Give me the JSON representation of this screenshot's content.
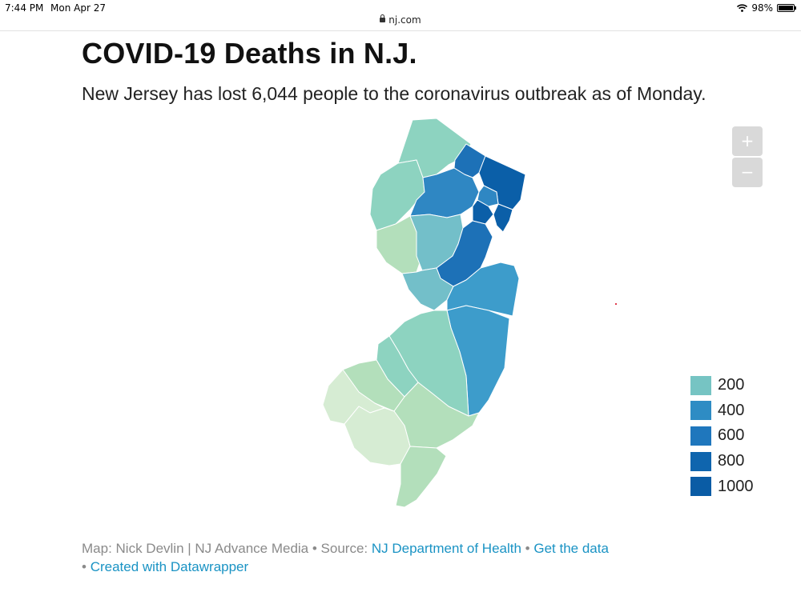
{
  "status_bar": {
    "time": "7:44 PM",
    "date": "Mon Apr 27",
    "battery": "98%"
  },
  "browser": {
    "url": "nj.com"
  },
  "title": "COVID-19 Deaths in N.J.",
  "subtitle": "New Jersey has lost 6,044 people to the coronavirus outbreak as of Monday.",
  "zoom": {
    "in_label": "+",
    "out_label": "−"
  },
  "legend": [
    {
      "label": "200",
      "color": "#76c4c3"
    },
    {
      "label": "400",
      "color": "#2e8cc4"
    },
    {
      "label": "600",
      "color": "#1f77bd"
    },
    {
      "label": "800",
      "color": "#0f65ae"
    },
    {
      "label": "1000",
      "color": "#0a5ca5"
    }
  ],
  "footer": {
    "prefix": "Map: Nick Devlin | NJ Advance Media • Source: ",
    "source_link": "NJ Department of Health",
    "sep1": " • ",
    "data_link": "Get the data",
    "sep2": "• ",
    "credit_link": "Created with Datawrapper"
  },
  "map_colors": {
    "lightest": "#d6ecd3",
    "light": "#b3dfbb",
    "teal_light": "#8dd3c0",
    "teal": "#73bfc9",
    "blue_mid": "#3d9ccb",
    "blue": "#2f87c3",
    "blue_dark": "#1d71b7",
    "darkest": "#0b5fa8"
  }
}
